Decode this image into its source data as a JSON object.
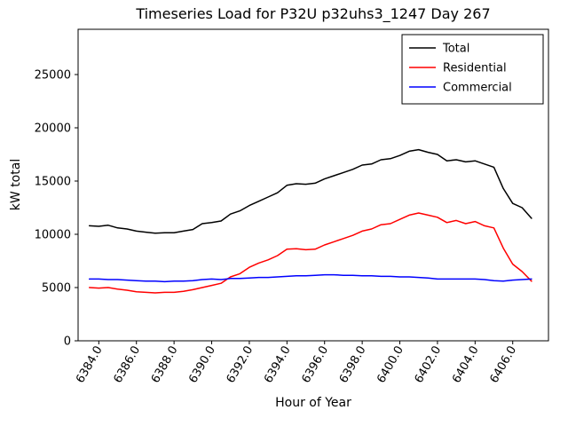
{
  "title": "Timeseries Load for P32U p32uhs3_1247  Day 267",
  "chart_data": {
    "type": "line",
    "title": "Timeseries Load for P32U p32uhs3_1247  Day 267",
    "xlabel": "Hour of Year",
    "ylabel": "kW total",
    "xlim": [
      6382.9,
      6407.9
    ],
    "ylim": [
      0,
      29250
    ],
    "grid": false,
    "legend_position": "upper right",
    "xticks": [
      6384,
      6386,
      6388,
      6390,
      6392,
      6394,
      6396,
      6398,
      6400,
      6402,
      6404,
      6406
    ],
    "xtick_labels": [
      "6384.0",
      "6386.0",
      "6388.0",
      "6390.0",
      "6392.0",
      "6394.0",
      "6396.0",
      "6398.0",
      "6400.0",
      "6402.0",
      "6404.0",
      "6406.0"
    ],
    "yticks": [
      0,
      5000,
      10000,
      15000,
      20000,
      25000
    ],
    "ytick_labels": [
      "0",
      "5000",
      "10000",
      "15000",
      "20000",
      "25000"
    ],
    "x": [
      6383.5,
      6384.0,
      6384.5,
      6385.0,
      6385.5,
      6386.0,
      6386.5,
      6387.0,
      6387.5,
      6388.0,
      6388.5,
      6389.0,
      6389.5,
      6390.0,
      6390.5,
      6391.0,
      6391.5,
      6392.0,
      6392.5,
      6393.0,
      6393.5,
      6394.0,
      6394.5,
      6395.0,
      6395.5,
      6396.0,
      6396.5,
      6397.0,
      6397.5,
      6398.0,
      6398.5,
      6399.0,
      6399.5,
      6400.0,
      6400.5,
      6401.0,
      6401.5,
      6402.0,
      6402.5,
      6403.0,
      6403.5,
      6404.0,
      6404.5,
      6405.0,
      6405.5,
      6406.0,
      6406.5,
      6407.0
    ],
    "series": [
      {
        "name": "Total",
        "color": "#000000",
        "values": [
          10800,
          10750,
          10850,
          10600,
          10500,
          10300,
          10200,
          10100,
          10150,
          10150,
          10300,
          10450,
          11000,
          11100,
          11250,
          11900,
          12200,
          12700,
          13100,
          13500,
          13900,
          14600,
          14750,
          14700,
          14800,
          15200,
          15500,
          15800,
          16100,
          16500,
          16600,
          17000,
          17100,
          17400,
          17800,
          17950,
          17700,
          17500,
          16900,
          17000,
          16800,
          16900,
          16600,
          16300,
          14300,
          12900,
          12500,
          11500
        ]
      },
      {
        "name": "Residential",
        "color": "#ff0000",
        "values": [
          5000,
          4950,
          5000,
          4850,
          4750,
          4600,
          4550,
          4500,
          4550,
          4550,
          4650,
          4800,
          5000,
          5200,
          5400,
          6000,
          6300,
          6900,
          7300,
          7600,
          8000,
          8600,
          8650,
          8550,
          8600,
          9000,
          9300,
          9600,
          9900,
          10300,
          10500,
          10900,
          11000,
          11400,
          11800,
          12000,
          11800,
          11600,
          11100,
          11300,
          11000,
          11200,
          10800,
          10600,
          8700,
          7200,
          6500,
          5600
        ]
      },
      {
        "name": "Commercial",
        "color": "#0000ff",
        "values": [
          5800,
          5800,
          5750,
          5750,
          5700,
          5650,
          5600,
          5600,
          5550,
          5600,
          5600,
          5650,
          5750,
          5800,
          5750,
          5850,
          5850,
          5900,
          5950,
          5950,
          6000,
          6050,
          6100,
          6100,
          6150,
          6200,
          6200,
          6150,
          6150,
          6100,
          6100,
          6050,
          6050,
          6000,
          6000,
          5950,
          5900,
          5800,
          5800,
          5800,
          5800,
          5800,
          5750,
          5650,
          5600,
          5700,
          5750,
          5800
        ]
      }
    ]
  },
  "colors": {
    "background": "#ffffff",
    "axis": "#000000"
  }
}
